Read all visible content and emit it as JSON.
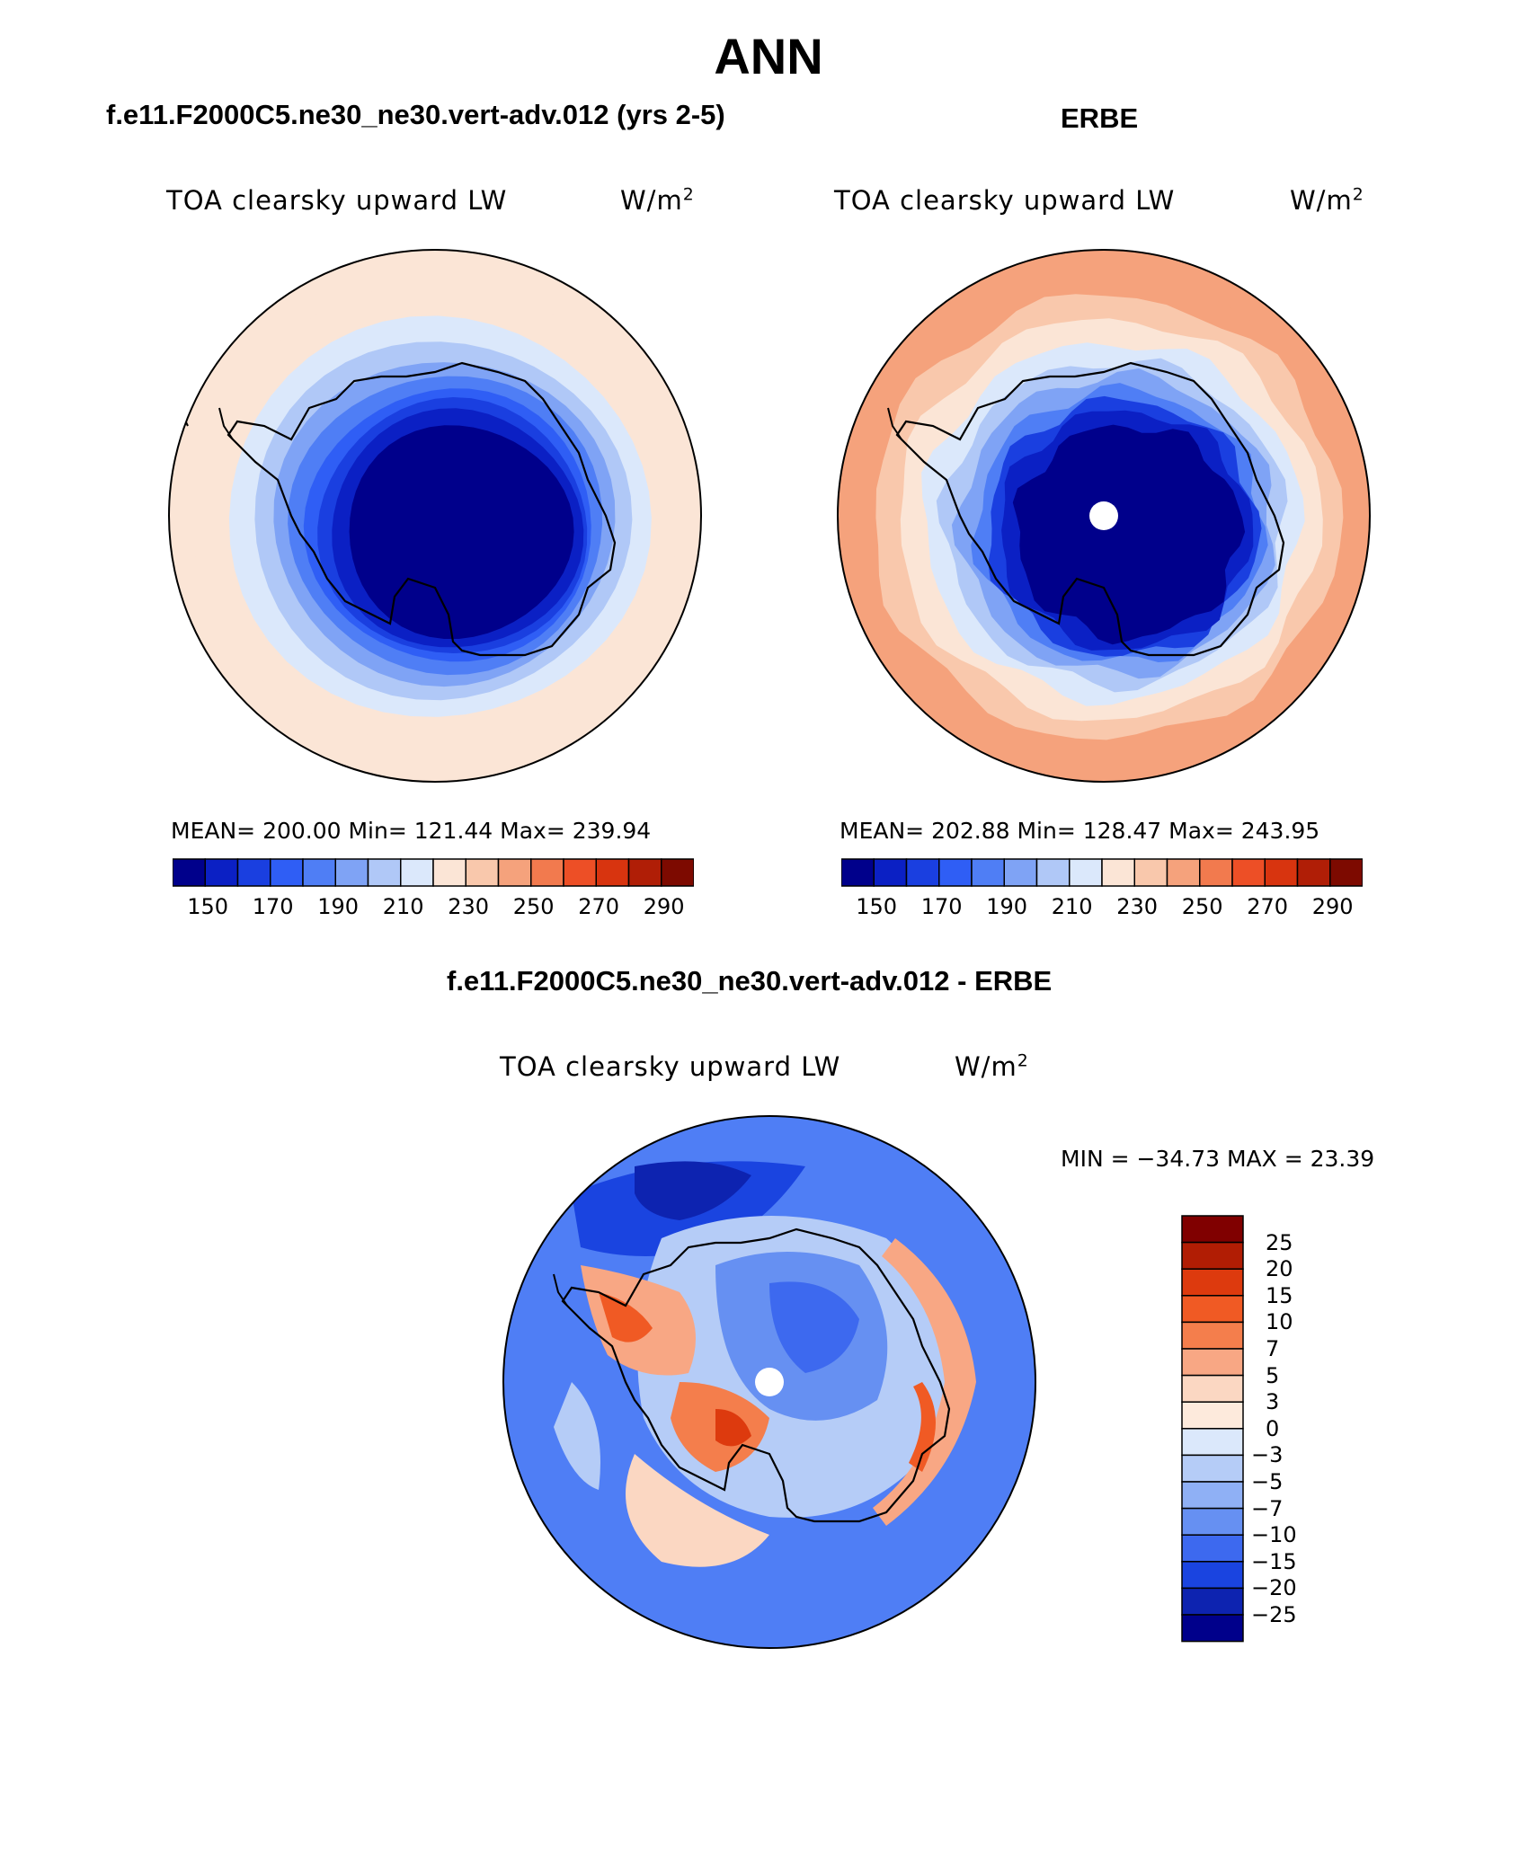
{
  "page": {
    "title": "ANN",
    "bottom_header": "f.e11.F2000C5.ne30_ne30.vert-adv.012 - ERBE"
  },
  "panels": {
    "model": {
      "header": "f.e11.F2000C5.ne30_ne30.vert-adv.012 (yrs 2-5)",
      "variable": "TOA clearsky upward LW",
      "units": "W/m²",
      "stats": {
        "mean": "200.00",
        "min": "121.44",
        "max": "239.94"
      },
      "stats_line": "MEAN= 200.00   Min= 121.44   Max= 239.94"
    },
    "obs": {
      "header": "ERBE",
      "variable": "TOA clearsky upward LW",
      "units": "W/m²",
      "stats": {
        "mean": "202.88",
        "min": "128.47",
        "max": "243.95"
      },
      "stats_line": "MEAN= 202.88   Min= 128.47   Max= 243.95"
    },
    "diff": {
      "variable": "TOA clearsky upward LW",
      "units": "W/m²",
      "minmax_line": "MIN = −34.73 MAX =   23.39"
    }
  },
  "colorbars": {
    "abs": {
      "tick_labels": [
        "150",
        "170",
        "190",
        "210",
        "230",
        "250",
        "270",
        "290"
      ],
      "colors": [
        "#00008b",
        "#0b20c4",
        "#1a3fe0",
        "#2f5ef5",
        "#4f7ef5",
        "#7fa3f5",
        "#b0c8f7",
        "#dbe8fb",
        "#fbe5d6",
        "#f9c8ac",
        "#f5a27c",
        "#f27a4e",
        "#ed4f26",
        "#d8340f",
        "#b01e06",
        "#7d0a00"
      ]
    },
    "diff": {
      "tick_labels": [
        "25",
        "20",
        "15",
        "10",
        "7",
        "5",
        "3",
        "0",
        "−3",
        "−5",
        "−7",
        "−10",
        "−15",
        "−20",
        "−25"
      ],
      "colors": [
        "#800000",
        "#b11d04",
        "#dd3a0e",
        "#f05a24",
        "#f47e4c",
        "#f8a784",
        "#fbd7c2",
        "#fdeadc",
        "#dbe8fb",
        "#b5ccf7",
        "#8fb0f5",
        "#6690f2",
        "#3d69ef",
        "#1a44e0",
        "#0d23b0",
        "#00008b"
      ]
    }
  },
  "map_fields": {
    "model_rings": [
      "#fbe5d6",
      "#dbe8fb",
      "#b0c8f7",
      "#7fa3f5",
      "#4f7ef5",
      "#2f5ef5",
      "#1a3fe0",
      "#0b20c4",
      "#00008b"
    ],
    "obs_rings": [
      "#f5a27c",
      "#f9c8ac",
      "#fbe5d6",
      "#dbe8fb",
      "#b0c8f7",
      "#7fa3f5",
      "#4f7ef5",
      "#1a3fe0",
      "#0b20c4",
      "#00008b"
    ],
    "diff_base": "#4f7ef5",
    "missing_color": "#ffffff",
    "coast_color": "#000000"
  }
}
